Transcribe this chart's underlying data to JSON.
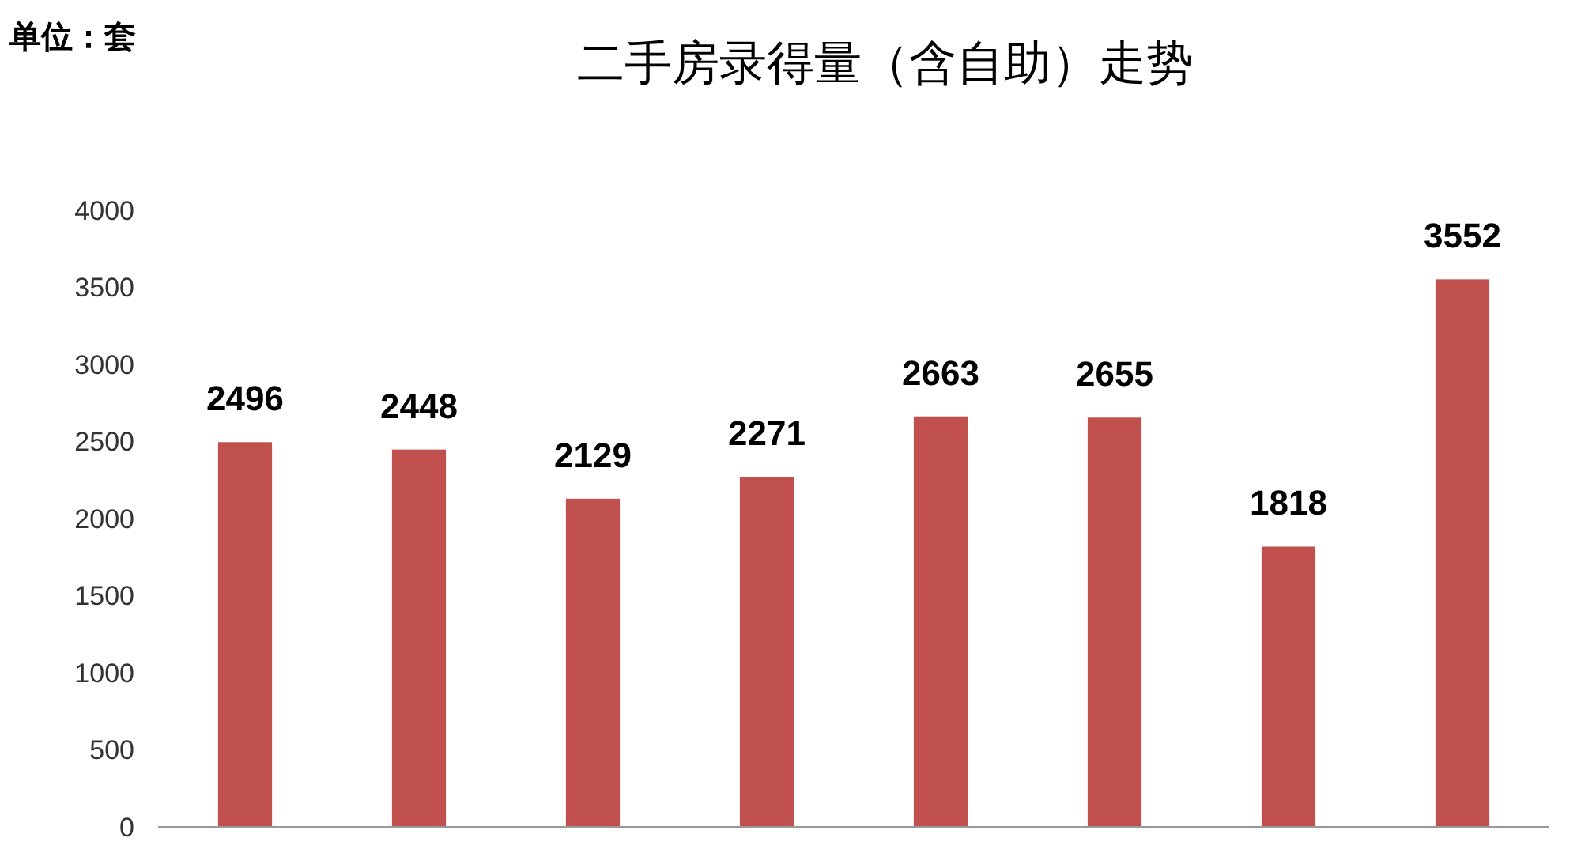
{
  "chart_data": {
    "type": "bar",
    "title": "二手房录得量（含自助）走势",
    "annotations": [
      "单位：套"
    ],
    "categories": [
      null,
      null,
      null,
      null,
      null,
      null,
      null,
      null
    ],
    "values": [
      2496,
      2448,
      2129,
      2271,
      2663,
      2655,
      1818,
      3552
    ],
    "color": "#c0504d",
    "ylim": [
      0,
      4000
    ],
    "yticks": [
      0,
      500,
      1000,
      1500,
      2000,
      2500,
      3000,
      3500,
      4000
    ],
    "grid": false,
    "data_labels": true
  }
}
